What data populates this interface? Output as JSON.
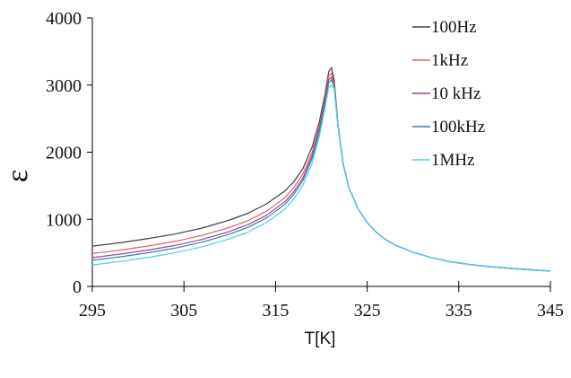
{
  "chart_data": {
    "type": "line",
    "title": "",
    "xlabel": "T[K]",
    "ylabel": "ε",
    "xlim": [
      295,
      345
    ],
    "ylim": [
      0,
      4000
    ],
    "xticks": [
      295,
      305,
      315,
      325,
      335,
      345
    ],
    "yticks": [
      0,
      1000,
      2000,
      3000,
      4000
    ],
    "grid": false,
    "legend_position": "top-right",
    "x": [
      295,
      298,
      301,
      304,
      307,
      310,
      312,
      314,
      316,
      317,
      318,
      319,
      319.8,
      320.4,
      320.8,
      321.1,
      321.4,
      321.8,
      322.4,
      323,
      324,
      325,
      326,
      327,
      328,
      330,
      332,
      334,
      336,
      338,
      340,
      342,
      345
    ],
    "series": [
      {
        "name": "100Hz",
        "color": "#404040",
        "values": [
          600,
          650,
          710,
          780,
          870,
          990,
          1090,
          1230,
          1420,
          1560,
          1760,
          2080,
          2470,
          2870,
          3200,
          3260,
          3080,
          2430,
          1810,
          1470,
          1160,
          950,
          810,
          700,
          620,
          510,
          430,
          370,
          330,
          300,
          275,
          255,
          230
        ]
      },
      {
        "name": "1kHz",
        "color": "#e06060",
        "values": [
          490,
          540,
          600,
          670,
          760,
          880,
          980,
          1120,
          1320,
          1470,
          1680,
          2000,
          2400,
          2810,
          3130,
          3180,
          3030,
          2420,
          1810,
          1470,
          1160,
          950,
          810,
          700,
          620,
          510,
          430,
          370,
          330,
          300,
          275,
          255,
          230
        ]
      },
      {
        "name": "10 kHz",
        "color": "#a040a0",
        "values": [
          430,
          480,
          540,
          610,
          700,
          820,
          920,
          1060,
          1260,
          1410,
          1620,
          1950,
          2360,
          2770,
          3080,
          3120,
          3000,
          2410,
          1810,
          1470,
          1160,
          950,
          810,
          700,
          620,
          510,
          430,
          370,
          330,
          300,
          275,
          255,
          230
        ]
      },
      {
        "name": "100kHz",
        "color": "#3a7fa6",
        "values": [
          390,
          440,
          500,
          570,
          660,
          780,
          880,
          1020,
          1220,
          1370,
          1580,
          1910,
          2320,
          2730,
          3030,
          3080,
          2980,
          2400,
          1800,
          1465,
          1158,
          948,
          808,
          698,
          618,
          508,
          428,
          368,
          328,
          298,
          273,
          253,
          228
        ]
      },
      {
        "name": "1MHz",
        "color": "#4fd0e8",
        "values": [
          320,
          370,
          430,
          500,
          590,
          710,
          810,
          950,
          1150,
          1300,
          1510,
          1840,
          2250,
          2660,
          2960,
          3000,
          2950,
          2390,
          1800,
          1465,
          1158,
          948,
          808,
          698,
          618,
          508,
          428,
          368,
          328,
          298,
          273,
          253,
          228
        ]
      }
    ]
  }
}
